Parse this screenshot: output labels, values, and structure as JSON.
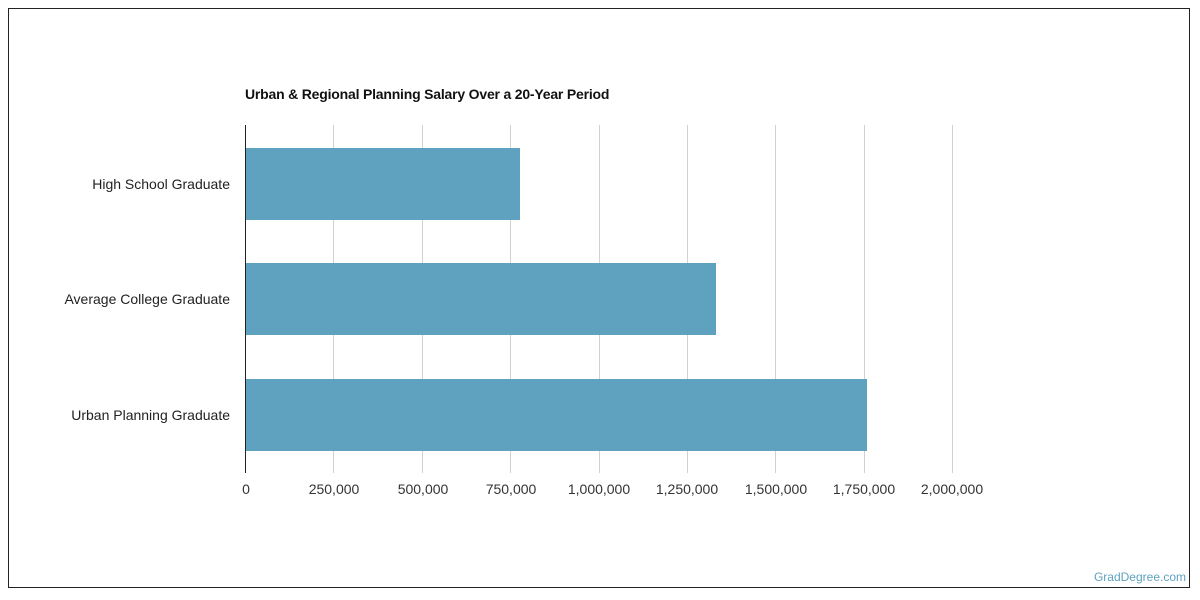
{
  "chart_data": {
    "type": "bar",
    "orientation": "horizontal",
    "title": "Urban & Regional Planning Salary Over a 20-Year Period",
    "xlabel": "",
    "ylabel": "",
    "categories": [
      "High School Graduate",
      "Average College Graduate",
      "Urban Planning Graduate"
    ],
    "values": [
      778000,
      1332000,
      1760000
    ],
    "xlim": [
      0,
      2000000
    ],
    "x_ticks": [
      "0",
      "250,000",
      "500,000",
      "750,000",
      "1,000,000",
      "1,250,000",
      "1,500,000",
      "1,750,000",
      "2,000,000"
    ],
    "grid": true,
    "legend": null,
    "bar_color": "#5fa2bf"
  },
  "header": {
    "title": "Urban & Regional Planning Salary Over a 20-Year Period"
  },
  "yaxis": {
    "labels": [
      "High School Graduate",
      "Average College Graduate",
      "Urban Planning Graduate"
    ]
  },
  "xaxis": {
    "ticks": [
      "0",
      "250,000",
      "500,000",
      "750,000",
      "1,000,000",
      "1,250,000",
      "1,500,000",
      "1,750,000",
      "2,000,000"
    ]
  },
  "footer": {
    "brand": "GradDegree.com"
  }
}
